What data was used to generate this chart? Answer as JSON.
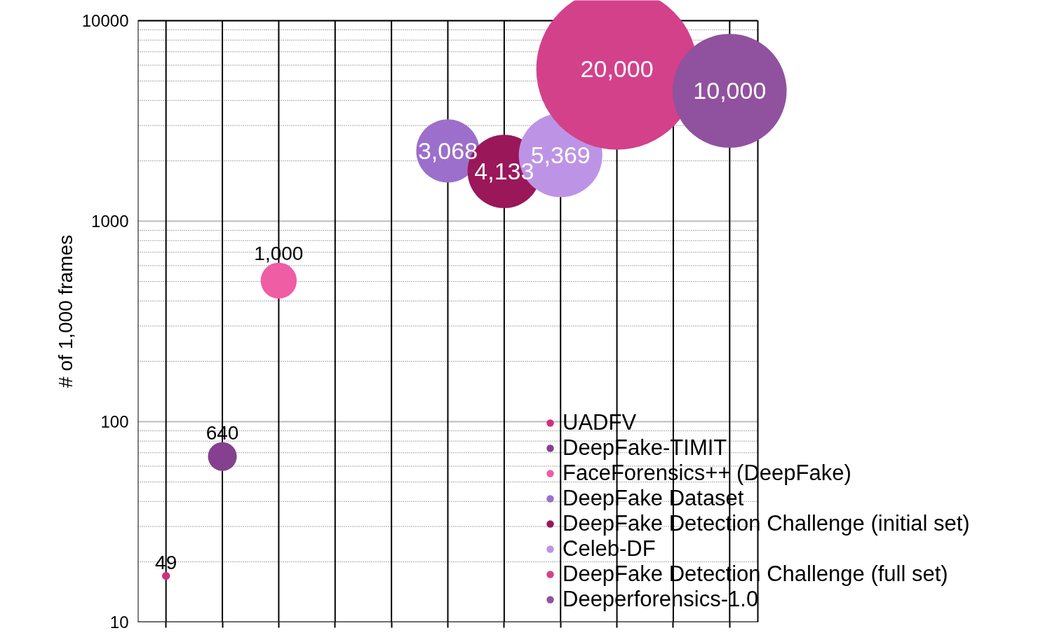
{
  "chart_data": {
    "type": "bubble",
    "ylabel": "# of 1,000 frames",
    "log": "y",
    "categories": [
      null,
      null,
      null,
      null,
      null,
      null,
      null,
      null,
      null,
      null,
      null
    ],
    "ylim": [
      10,
      10000
    ],
    "yticks": [
      10,
      100,
      1000,
      10000
    ],
    "tick_labels": "y",
    "grid": true,
    "legend": "bottom right",
    "series": [
      {
        "name": "UADFV",
        "color": "#d1307a",
        "values": [
          17,
          null,
          null,
          null,
          null,
          null,
          null,
          null,
          null,
          null,
          null
        ],
        "sizes": [
          0.00245,
          null,
          null,
          null,
          null,
          null,
          null,
          null,
          null,
          null,
          null
        ]
      },
      {
        "name": "DeepFake-TIMIT",
        "color": "#85408f",
        "values": [
          null,
          67,
          null,
          null,
          null,
          null,
          null,
          null,
          null,
          null,
          null
        ],
        "sizes": [
          null,
          0.032,
          null,
          null,
          null,
          null,
          null,
          null,
          null,
          null,
          null
        ]
      },
      {
        "name": "FaceForensics++ (DeepFake)",
        "color": "#ef5da5",
        "values": [
          null,
          null,
          505,
          null,
          null,
          null,
          null,
          null,
          null,
          null,
          null
        ],
        "sizes": [
          null,
          null,
          0.05,
          null,
          null,
          null,
          null,
          null,
          null,
          null,
          null
        ]
      },
      {
        "name": "DeepFake Dataset",
        "color": "#9b6fcb",
        "values": [
          null,
          null,
          null,
          null,
          null,
          2240,
          null,
          null,
          null,
          null,
          null
        ],
        "sizes": [
          null,
          null,
          null,
          null,
          null,
          0.1534,
          null,
          null,
          null,
          null,
          null
        ]
      },
      {
        "name": "DeepFake Detection Challenge (initial set)",
        "color": "#9a1759",
        "values": [
          null,
          null,
          null,
          null,
          null,
          null,
          1770,
          null,
          null,
          null,
          null
        ],
        "sizes": [
          null,
          null,
          null,
          null,
          null,
          null,
          0.20665,
          null,
          null,
          null,
          null
        ]
      },
      {
        "name": "Celeb-DF",
        "color": "#bd94e5",
        "values": [
          null,
          null,
          null,
          null,
          null,
          null,
          null,
          2130,
          null,
          null,
          null
        ],
        "sizes": [
          null,
          null,
          null,
          null,
          null,
          null,
          null,
          0.26845,
          null,
          null,
          null
        ]
      },
      {
        "name": "DeepFake Detection Challenge (full set)",
        "color": "#d3418a",
        "values": [
          null,
          null,
          null,
          null,
          null,
          null,
          null,
          null,
          5740,
          null,
          null
        ],
        "sizes": [
          null,
          null,
          null,
          null,
          null,
          null,
          null,
          null,
          1,
          null,
          null
        ]
      },
      {
        "name": "Deeperforensics-1.0",
        "color": "#90529e",
        "values": [
          null,
          null,
          null,
          null,
          null,
          null,
          null,
          null,
          null,
          null,
          4470
        ],
        "sizes": [
          null,
          null,
          null,
          null,
          null,
          null,
          null,
          null,
          null,
          null,
          0.5
        ]
      }
    ],
    "annotations": [
      {
        "text": "49",
        "y": 17
      },
      {
        "text": "640",
        "y": 67
      },
      {
        "text": "1,000",
        "y": 505
      },
      {
        "text": "3,068",
        "y": 2240
      },
      {
        "text": "4,133",
        "y": 1770
      },
      {
        "text": "5,369",
        "y": 2130
      },
      {
        "text": "20,000",
        "y": 5740
      },
      {
        "text": "10,000",
        "y": 4470
      }
    ]
  }
}
